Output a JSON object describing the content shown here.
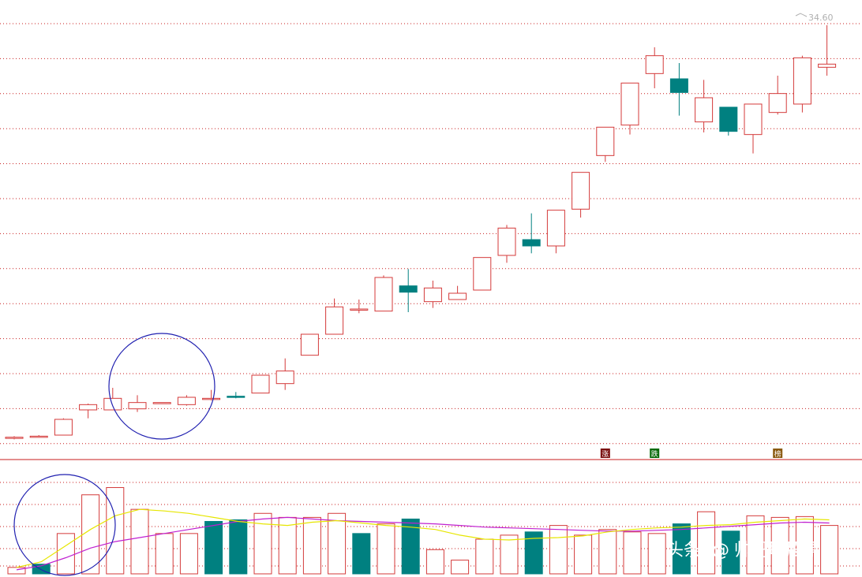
{
  "colors": {
    "up": "#d43a3a",
    "down": "#008080",
    "grid": "#c81e1e",
    "divider": "#c81e1e",
    "ma_short": "#e6e600",
    "ma_long": "#c020d0",
    "circle": "#2020b0",
    "tag_up_bg": "#7a1010",
    "tag_down_bg": "#0a6a0a",
    "tag_mid_bg": "#8a5a10",
    "price_label": "#b0b0b0"
  },
  "chart_data": [
    {
      "type": "candlestick",
      "high_label": "34.60",
      "y_range": [
        14.8,
        35.5
      ],
      "grid": true,
      "candles": [
        {
          "o": 14.95,
          "c": 15.0,
          "h": 15.05,
          "l": 14.9
        },
        {
          "o": 15.05,
          "c": 15.05,
          "h": 15.1,
          "l": 15.0
        },
        {
          "o": 15.1,
          "c": 15.85,
          "h": 15.9,
          "l": 15.1
        },
        {
          "o": 16.3,
          "c": 16.55,
          "h": 16.6,
          "l": 15.9
        },
        {
          "o": 16.3,
          "c": 16.85,
          "h": 17.35,
          "l": 16.3
        },
        {
          "o": 16.35,
          "c": 16.65,
          "h": 17.0,
          "l": 16.2
        },
        {
          "o": 16.65,
          "c": 16.65,
          "h": 16.65,
          "l": 16.65
        },
        {
          "o": 16.55,
          "c": 16.9,
          "h": 17.0,
          "l": 16.5
        },
        {
          "o": 16.85,
          "c": 16.85,
          "h": 17.25,
          "l": 16.75
        },
        {
          "o": 16.95,
          "c": 16.9,
          "h": 17.15,
          "l": 16.85
        },
        {
          "o": 17.1,
          "c": 17.95,
          "h": 17.95,
          "l": 17.1
        },
        {
          "o": 17.55,
          "c": 18.15,
          "h": 18.75,
          "l": 17.25
        },
        {
          "o": 18.9,
          "c": 19.9,
          "h": 19.9,
          "l": 18.9
        },
        {
          "o": 19.9,
          "c": 21.2,
          "h": 21.6,
          "l": 19.9
        },
        {
          "o": 21.1,
          "c": 21.1,
          "h": 21.55,
          "l": 20.9
        },
        {
          "o": 21.0,
          "c": 22.6,
          "h": 22.7,
          "l": 21.0
        },
        {
          "o": 22.2,
          "c": 21.9,
          "h": 23.0,
          "l": 20.95
        },
        {
          "o": 21.45,
          "c": 22.1,
          "h": 22.45,
          "l": 21.15
        },
        {
          "o": 21.55,
          "c": 21.85,
          "h": 22.2,
          "l": 21.55
        },
        {
          "o": 22.0,
          "c": 23.55,
          "h": 23.55,
          "l": 22.0
        },
        {
          "o": 23.65,
          "c": 24.95,
          "h": 25.1,
          "l": 23.3
        },
        {
          "o": 24.4,
          "c": 24.1,
          "h": 25.65,
          "l": 23.75
        },
        {
          "o": 24.1,
          "c": 25.8,
          "h": 25.8,
          "l": 23.75
        },
        {
          "o": 25.85,
          "c": 27.6,
          "h": 27.6,
          "l": 25.45
        },
        {
          "o": 28.4,
          "c": 29.75,
          "h": 29.75,
          "l": 28.1
        },
        {
          "o": 29.85,
          "c": 31.85,
          "h": 31.85,
          "l": 29.4
        },
        {
          "o": 32.3,
          "c": 33.15,
          "h": 33.55,
          "l": 31.6
        },
        {
          "o": 32.05,
          "c": 31.4,
          "h": 32.8,
          "l": 30.3
        },
        {
          "o": 30.0,
          "c": 31.15,
          "h": 32.0,
          "l": 29.5
        },
        {
          "o": 30.7,
          "c": 29.55,
          "h": 30.7,
          "l": 29.35
        },
        {
          "o": 29.4,
          "c": 30.85,
          "h": 30.85,
          "l": 28.5
        },
        {
          "o": 30.45,
          "c": 31.35,
          "h": 32.2,
          "l": 30.35
        },
        {
          "o": 30.85,
          "c": 33.05,
          "h": 33.15,
          "l": 30.45
        },
        {
          "o": 32.6,
          "c": 32.75,
          "h": 34.6,
          "l": 32.2
        }
      ],
      "tags": [
        {
          "index": 24,
          "label": "涨",
          "kind": "up"
        },
        {
          "index": 26,
          "label": "跌",
          "kind": "down"
        },
        {
          "index": 31,
          "label": "榜",
          "kind": "mid"
        }
      ]
    },
    {
      "type": "bar",
      "series_name": "volume",
      "y_range": [
        0,
        130
      ],
      "values": [
        8,
        12,
        50,
        98,
        107,
        80,
        50,
        50,
        65,
        67,
        75,
        70,
        70,
        75,
        50,
        62,
        68,
        30,
        17,
        43,
        48,
        52,
        60,
        48,
        55,
        52,
        50,
        62,
        77,
        53,
        72,
        70,
        71,
        60
      ],
      "up": [
        true,
        false,
        true,
        true,
        true,
        true,
        true,
        true,
        false,
        false,
        true,
        true,
        true,
        true,
        false,
        true,
        false,
        true,
        true,
        true,
        true,
        false,
        true,
        true,
        true,
        true,
        true,
        false,
        true,
        false,
        true,
        true,
        true,
        true
      ],
      "ma_short": [
        8,
        15,
        35,
        55,
        72,
        80,
        78,
        75,
        70,
        65,
        62,
        60,
        64,
        66,
        63,
        60,
        58,
        55,
        48,
        43,
        42,
        44,
        45,
        47,
        52,
        55,
        57,
        58,
        60,
        61,
        64,
        66,
        68,
        67
      ],
      "ma_long": [
        5,
        10,
        20,
        32,
        40,
        45,
        50,
        55,
        60,
        65,
        68,
        70,
        68,
        66,
        65,
        64,
        63,
        62,
        60,
        58,
        57,
        56,
        55,
        54,
        53,
        53,
        54,
        55,
        57,
        59,
        61,
        63,
        64,
        63
      ]
    }
  ],
  "watermark": {
    "at": "@",
    "brand": "头条",
    "account": "帅哥聊股票"
  }
}
